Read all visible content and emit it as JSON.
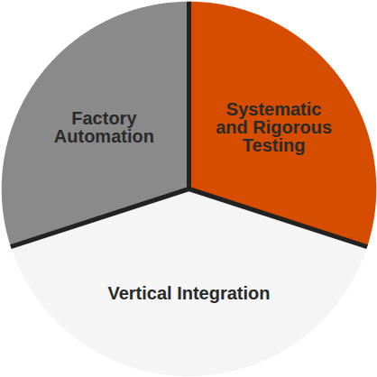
{
  "chart_data": {
    "type": "pie",
    "categories": [
      "Systematic and Rigorous Testing",
      "Vertical Integration",
      "Factory Automation"
    ],
    "values": [
      30,
      40,
      30
    ],
    "colors": [
      "#d64d00",
      "#f5f5f5",
      "#8a8a8a"
    ]
  }
}
